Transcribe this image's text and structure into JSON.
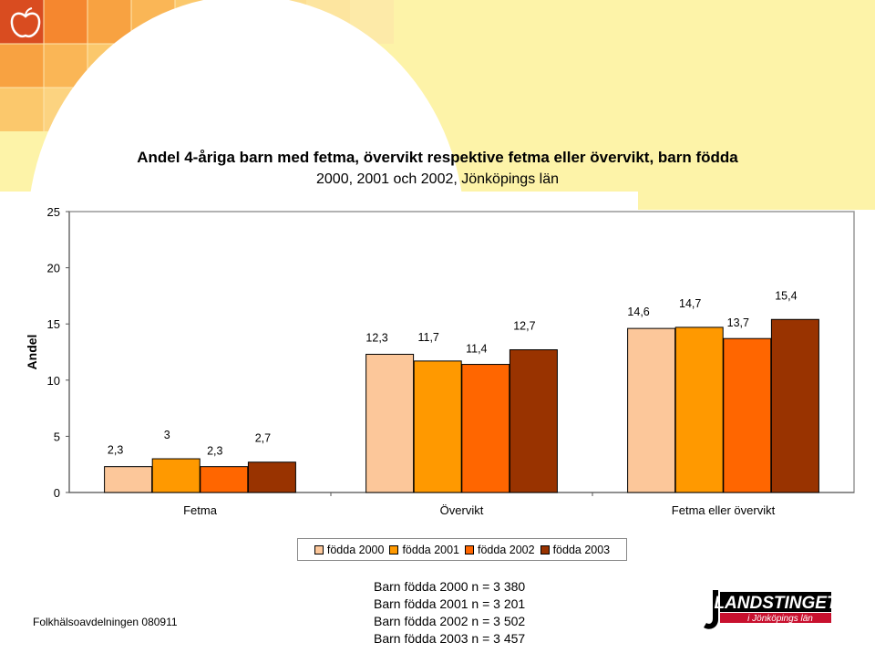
{
  "title_line1": "Andel 4-åriga barn med fetma, övervikt respektive fetma eller övervikt, barn födda",
  "title_line2": "2000, 2001 och 2002, Jönköpings län",
  "ylabel": "Andel",
  "footer_left": "Folkhälsoavdelningen 080911",
  "notes": [
    "Barn födda 2000 n = 3 380",
    "Barn födda 2001 n = 3 201",
    "Barn födda 2002 n = 3 502",
    "Barn födda 2003 n = 3 457"
  ],
  "logo": {
    "line1": "LANDSTINGET",
    "line2": "i Jönköpings län"
  },
  "colors": {
    "page_bg": "#fdf3a8",
    "born_2000": "#fcc79a",
    "born_2001": "#ff9900",
    "born_2002": "#ff6600",
    "born_2003": "#993300",
    "logo_red": "#c8102e"
  },
  "chart_data": {
    "type": "bar",
    "categories": [
      "Fetma",
      "Övervikt",
      "Fetma eller övervikt"
    ],
    "series": [
      {
        "name": "födda 2000",
        "values": [
          2.3,
          12.3,
          14.6
        ],
        "labels": [
          "2,3",
          "12,3",
          "14,6"
        ],
        "color": "#fcc79a"
      },
      {
        "name": "födda 2001",
        "values": [
          3,
          11.7,
          14.7
        ],
        "labels": [
          "3",
          "11,7",
          "14,7"
        ],
        "color": "#ff9900"
      },
      {
        "name": "födda 2002",
        "values": [
          2.3,
          11.4,
          13.7
        ],
        "labels": [
          "2,3",
          "11,4",
          "13,7"
        ],
        "color": "#ff6600"
      },
      {
        "name": "födda 2003",
        "values": [
          2.7,
          12.7,
          15.4
        ],
        "labels": [
          "2,7",
          "12,7",
          "15,4"
        ],
        "color": "#993300"
      }
    ],
    "ylabel": "Andel",
    "ylim": [
      0,
      25
    ],
    "yticks": [
      0,
      5,
      10,
      15,
      20,
      25
    ],
    "grid": false,
    "legend": "bottom"
  }
}
